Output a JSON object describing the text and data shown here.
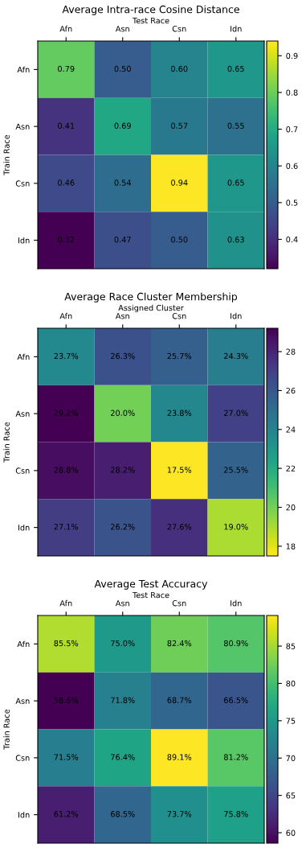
{
  "chart_data": [
    {
      "type": "heatmap",
      "title": "Average Intra-race Cosine Distance",
      "xlabel": "Test Race",
      "ylabel": "Train Race",
      "categories": [
        "Afn",
        "Asn",
        "Csn",
        "Idn"
      ],
      "y_categories": [
        "Afn",
        "Asn",
        "Csn",
        "Idn"
      ],
      "cells": [
        [
          0.79,
          0.5,
          0.6,
          0.65
        ],
        [
          0.41,
          0.69,
          0.57,
          0.55
        ],
        [
          0.46,
          0.54,
          0.94,
          0.65
        ],
        [
          0.32,
          0.47,
          0.5,
          0.63
        ]
      ],
      "cell_labels": [
        [
          "0.79",
          "0.50",
          "0.60",
          "0.65"
        ],
        [
          "0.41",
          "0.69",
          "0.57",
          "0.55"
        ],
        [
          "0.46",
          "0.54",
          "0.94",
          "0.65"
        ],
        [
          "0.32",
          "0.47",
          "0.50",
          "0.63"
        ]
      ],
      "clim": [
        0.32,
        0.94
      ],
      "cticks": [
        0.4,
        0.5,
        0.6,
        0.7,
        0.8,
        0.9
      ]
    },
    {
      "type": "heatmap",
      "title": "Average Race Cluster Membership",
      "xlabel": "Assigned Cluster",
      "ylabel": "Train Race",
      "categories": [
        "Afn",
        "Asn",
        "Csn",
        "Idn"
      ],
      "y_categories": [
        "Afn",
        "Asn",
        "Csn",
        "Idn"
      ],
      "cells": [
        [
          23.7,
          26.3,
          25.7,
          24.3
        ],
        [
          29.2,
          20.0,
          23.8,
          27.0
        ],
        [
          28.8,
          28.2,
          17.5,
          25.5
        ],
        [
          27.1,
          26.2,
          27.6,
          19.0
        ]
      ],
      "cell_labels": [
        [
          "23.7%",
          "26.3%",
          "25.7%",
          "24.3%"
        ],
        [
          "29.2%",
          "20.0%",
          "23.8%",
          "27.0%"
        ],
        [
          "28.8%",
          "28.2%",
          "17.5%",
          "25.5%"
        ],
        [
          "27.1%",
          "26.2%",
          "27.6%",
          "19.0%"
        ]
      ],
      "clim": [
        29.2,
        17.5
      ],
      "cticks": [
        18,
        20,
        22,
        24,
        26,
        28
      ]
    },
    {
      "type": "heatmap",
      "title": "Average Test Accuracy",
      "xlabel": "Test Race",
      "ylabel": "Train Race",
      "categories": [
        "Afn",
        "Asn",
        "Csn",
        "Idn"
      ],
      "y_categories": [
        "Afn",
        "Asn",
        "Csn",
        "Idn"
      ],
      "cells": [
        [
          85.5,
          75.0,
          82.4,
          80.9
        ],
        [
          58.6,
          71.8,
          68.7,
          66.5
        ],
        [
          71.5,
          76.4,
          89.1,
          81.2
        ],
        [
          61.2,
          68.5,
          73.7,
          75.8
        ]
      ],
      "cell_labels": [
        [
          "85.5%",
          "75.0%",
          "82.4%",
          "80.9%"
        ],
        [
          "58.6%",
          "71.8%",
          "68.7%",
          "66.5%"
        ],
        [
          "71.5%",
          "76.4%",
          "89.1%",
          "81.2%"
        ],
        [
          "61.2%",
          "68.5%",
          "73.7%",
          "75.8%"
        ]
      ],
      "clim": [
        58.6,
        89.1
      ],
      "cticks": [
        60,
        65,
        70,
        75,
        80,
        85
      ]
    }
  ]
}
